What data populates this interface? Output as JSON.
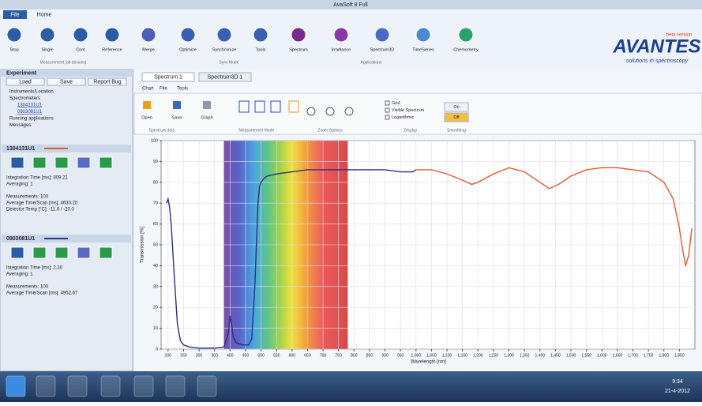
{
  "window": {
    "title": "AvaSoft 8 Full",
    "menu": [
      "File",
      "Home"
    ]
  },
  "toolbar": {
    "buttons": [
      "Stop",
      "Single",
      "Cont",
      "Reference",
      "Merge",
      "Optimize",
      "Synchronize",
      "Tools",
      "Spectrum",
      "Irradiance",
      "Spectrum3D",
      "TimeSeries",
      "Chemometry"
    ],
    "groups": [
      "Measurement (all devices)",
      "Sync Mode",
      "Applications"
    ]
  },
  "logo": {
    "name": "AVANTES",
    "tagline": "solutions in spectroscopy",
    "badge": "beta version"
  },
  "sidebar": {
    "title": "Experiment",
    "buttons": [
      "Load",
      "Save",
      "Report Bug"
    ],
    "tree": [
      "Instruments/Location",
      "Spectrometers",
      "1304131U1",
      "0903081U1",
      "Running applications",
      "Messages"
    ],
    "devices": [
      {
        "name": "1304131U1",
        "params": [
          "Integration Time [ms]: 809.21",
          "Averaging: 1",
          "Measurements: 100",
          "Average Time/Scan [ms]: 4630.20",
          "Detector Temp [°C]: -11.6 / -20.0"
        ]
      },
      {
        "name": "0903081U1",
        "params": [
          "Integration Time [ms]: 2.30",
          "Averaging: 1",
          "Measurements: 100",
          "Average Time/Scan [ms]: 4952.67"
        ]
      }
    ]
  },
  "tabs": [
    "Spectrum 1",
    "Spectrum3D 1"
  ],
  "ribbon": {
    "tabs": [
      "Chart",
      "File",
      "Tools"
    ],
    "buttons": [
      "Open",
      "Save",
      "Graph"
    ],
    "checks": [
      "Grid",
      "Visible Spectrum",
      "Logarithmic"
    ],
    "toggles": [
      "On",
      "Off"
    ],
    "groups": [
      "Spectrum data",
      "Measurement Mode",
      "Zoom Options",
      "Display",
      "Smoothing"
    ]
  },
  "taskbar": {
    "time": "9:34",
    "date": "21-4-2012"
  },
  "chart_data": {
    "type": "line",
    "xlabel": "Wavelength [nm]",
    "ylabel": "Transmission [%]",
    "xlim": [
      180,
      1900
    ],
    "ylim": [
      0,
      100
    ],
    "xticks": [
      200,
      250,
      300,
      350,
      400,
      450,
      500,
      550,
      600,
      650,
      700,
      750,
      800,
      850,
      900,
      950,
      {
        "value": 1000,
        "label": "1,000"
      },
      {
        "value": 1050,
        "label": "1,050"
      },
      {
        "value": 1100,
        "label": "1,100"
      },
      {
        "value": 1150,
        "label": "1,150"
      },
      {
        "value": 1200,
        "label": "1,200"
      },
      {
        "value": 1250,
        "label": "1,250"
      },
      {
        "value": 1300,
        "label": "1,300"
      },
      {
        "value": 1350,
        "label": "1,350"
      },
      {
        "value": 1400,
        "label": "1,400"
      },
      {
        "value": 1450,
        "label": "1,450"
      },
      {
        "value": 1500,
        "label": "1,500"
      },
      {
        "value": 1550,
        "label": "1,550"
      },
      {
        "value": 1600,
        "label": "1,600"
      },
      {
        "value": 1650,
        "label": "1,650"
      },
      {
        "value": 1700,
        "label": "1,700"
      },
      {
        "value": 1750,
        "label": "1,750"
      },
      {
        "value": 1800,
        "label": "1,800"
      },
      {
        "value": 1850,
        "label": "1,850"
      }
    ],
    "yticks": [
      0,
      10,
      20,
      30,
      40,
      50,
      60,
      70,
      80,
      90,
      100
    ],
    "grid": true,
    "visible_spectrum": true,
    "visible_range": [
      380,
      780
    ],
    "series": [
      {
        "color": "#2c2f86",
        "x": [
          195,
          200,
          205,
          210,
          220,
          230,
          240,
          250,
          270,
          300,
          350,
          380,
          395,
          400,
          405,
          410,
          420,
          440,
          460,
          470,
          480,
          490,
          495,
          500,
          510,
          520,
          550,
          600,
          650,
          700,
          750,
          800,
          850,
          900,
          950,
          990,
          1000
        ],
        "values": [
          70,
          72,
          68,
          60,
          35,
          12,
          4,
          2,
          1,
          0.5,
          0.5,
          1,
          8,
          16,
          12,
          6,
          3,
          2,
          2,
          5,
          30,
          70,
          78,
          80,
          82,
          83,
          84,
          85,
          86,
          86,
          86,
          86,
          86,
          86,
          85,
          85,
          86
        ]
      },
      {
        "color": "#e8572a",
        "x": [
          1000,
          1050,
          1100,
          1150,
          1180,
          1200,
          1250,
          1300,
          1350,
          1400,
          1430,
          1460,
          1500,
          1550,
          1600,
          1650,
          1700,
          1750,
          1800,
          1830,
          1850,
          1860,
          1870,
          1880,
          1890
        ],
        "values": [
          86,
          86,
          84,
          81,
          79,
          80,
          84,
          87,
          85,
          80,
          77,
          79,
          83,
          86,
          87,
          87,
          86,
          85,
          80,
          72,
          58,
          48,
          40,
          45,
          58
        ]
      }
    ]
  }
}
